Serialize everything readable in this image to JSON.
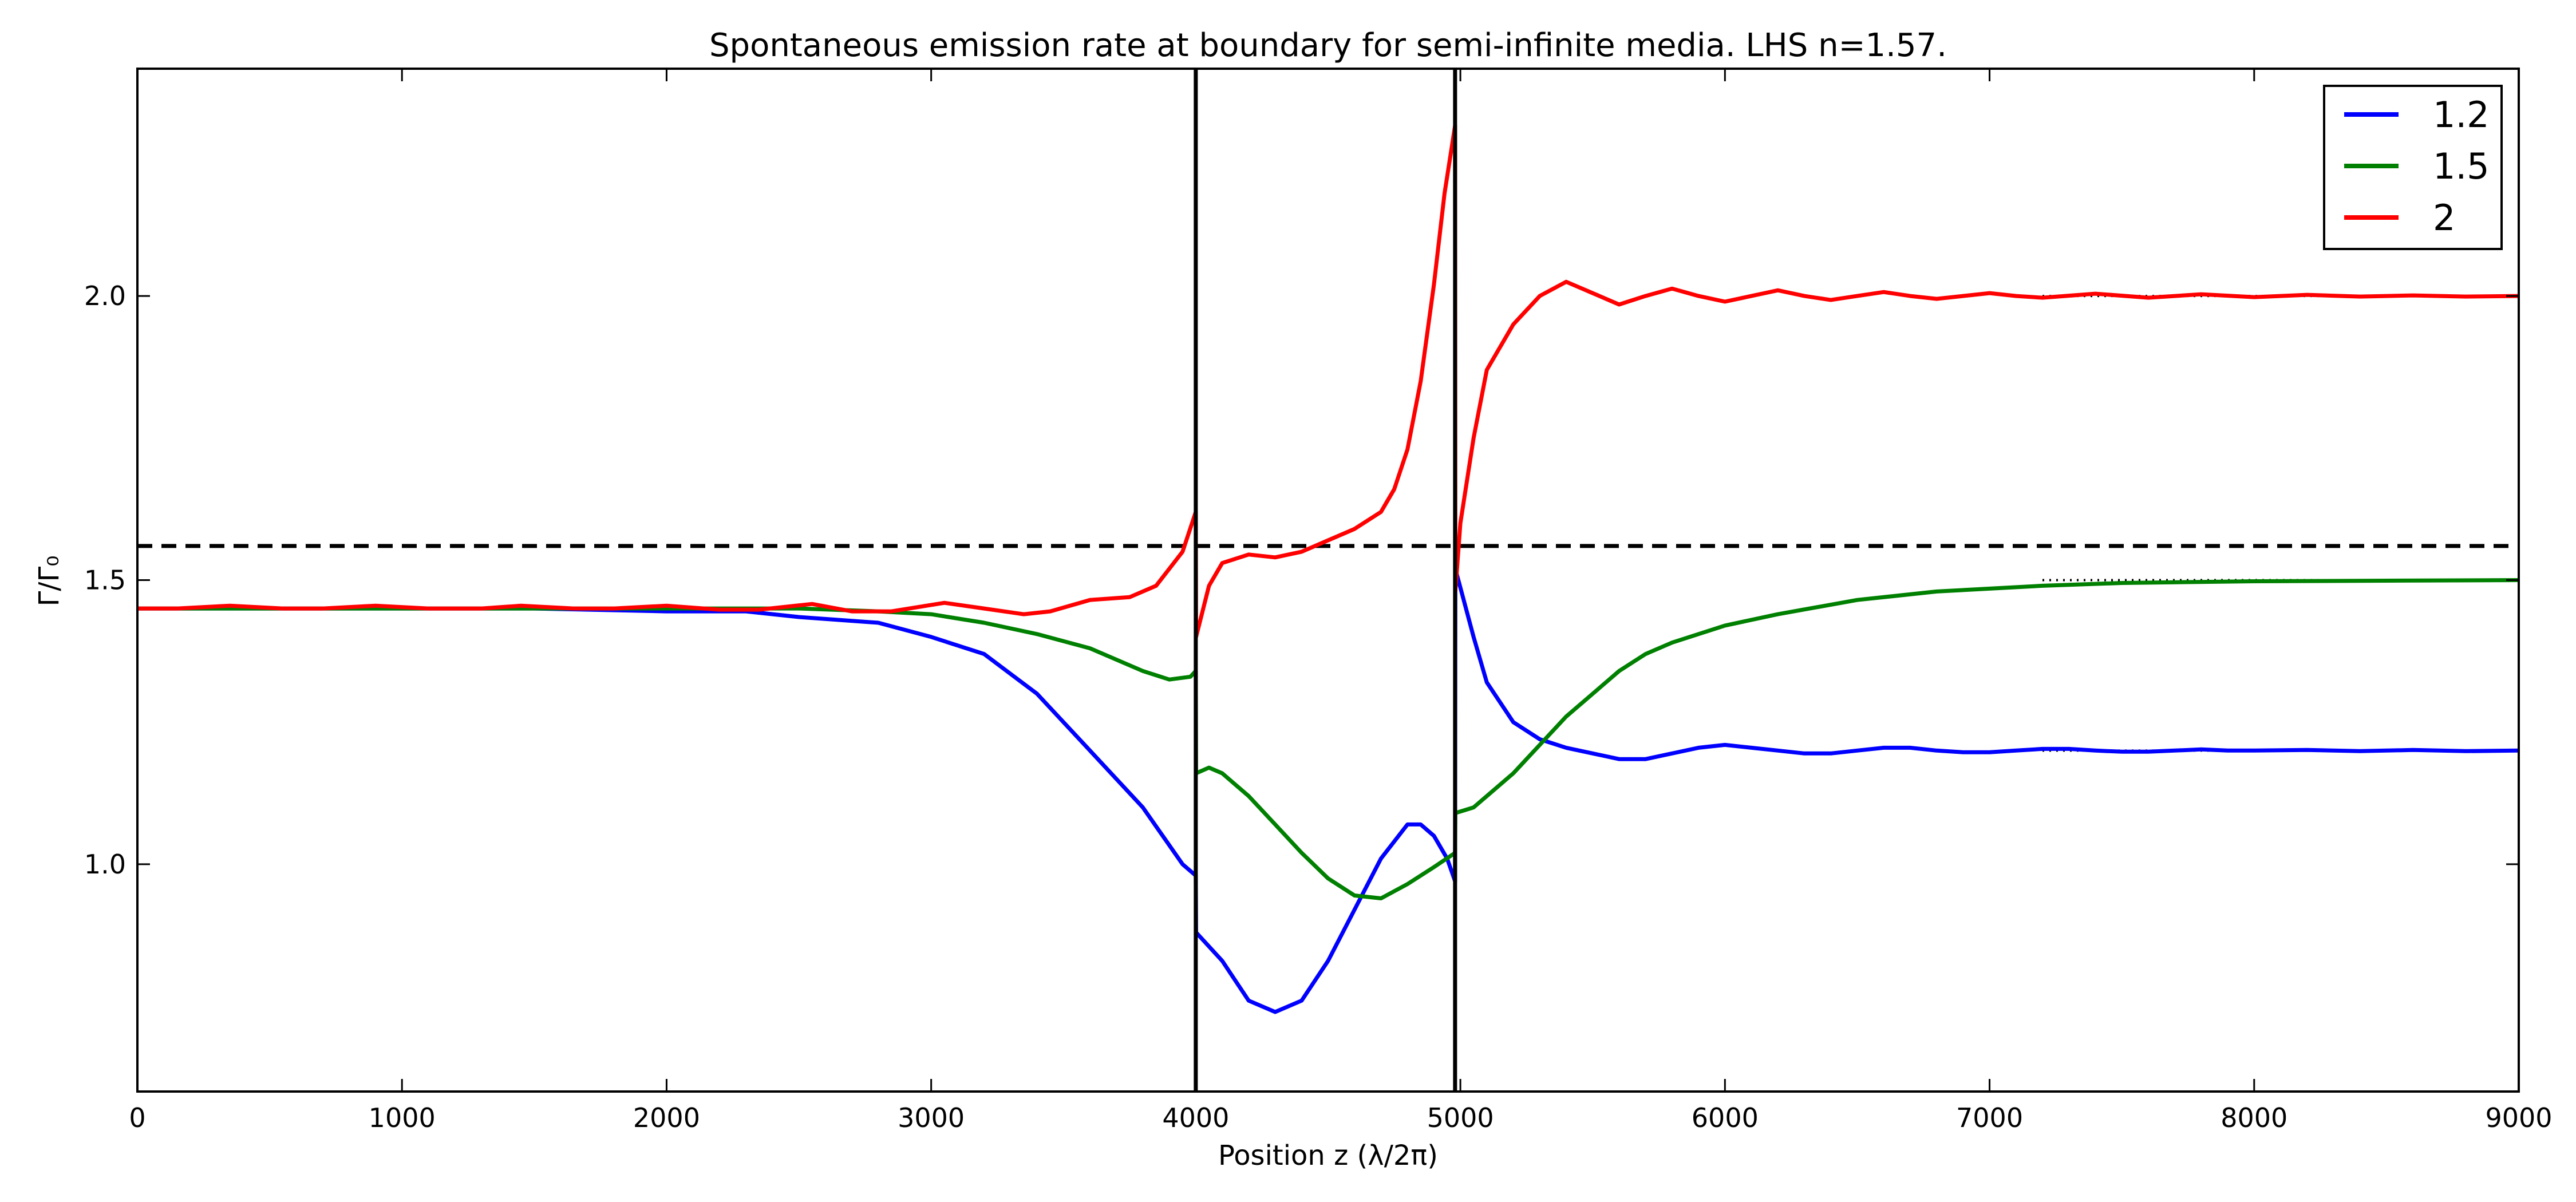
{
  "chart_data": {
    "type": "line",
    "title": "Spontaneous emission rate at boundary for semi-infinite media. LHS n=1.57.",
    "xlabel": "Position z (λ/2π)",
    "ylabel": "Γ/Γ₀",
    "xlim": [
      0,
      9000
    ],
    "ylim": [
      0.6,
      2.4
    ],
    "xticks": [
      0,
      1000,
      2000,
      3000,
      4000,
      5000,
      6000,
      7000,
      8000,
      9000
    ],
    "xtick_labels": [
      "0",
      "1000",
      "2000",
      "3000",
      "4000",
      "5000",
      "6000",
      "7000",
      "8000",
      "9000"
    ],
    "yticks": [
      1.0,
      1.5,
      2.0
    ],
    "ytick_labels": [
      "1.0",
      "1.5",
      "2.0"
    ],
    "grid": false,
    "legend_position": "top-right",
    "vertical_lines": [
      4000,
      4980
    ],
    "horizontal_dashed_line": 1.56,
    "series": [
      {
        "name": "1.2",
        "color": "#0000ff",
        "reference_level": 1.2,
        "points": [
          [
            0,
            1.45
          ],
          [
            500,
            1.45
          ],
          [
            1000,
            1.45
          ],
          [
            1500,
            1.45
          ],
          [
            2000,
            1.445
          ],
          [
            2300,
            1.445
          ],
          [
            2500,
            1.435
          ],
          [
            2800,
            1.425
          ],
          [
            3000,
            1.4
          ],
          [
            3200,
            1.37
          ],
          [
            3400,
            1.3
          ],
          [
            3600,
            1.2
          ],
          [
            3800,
            1.1
          ],
          [
            3950,
            1.0
          ],
          [
            4000,
            0.98
          ],
          [
            4001,
            0.88
          ],
          [
            4100,
            0.83
          ],
          [
            4200,
            0.76
          ],
          [
            4300,
            0.74
          ],
          [
            4400,
            0.76
          ],
          [
            4500,
            0.83
          ],
          [
            4600,
            0.92
          ],
          [
            4700,
            1.01
          ],
          [
            4800,
            1.07
          ],
          [
            4850,
            1.07
          ],
          [
            4900,
            1.05
          ],
          [
            4950,
            1.01
          ],
          [
            4980,
            0.97
          ],
          [
            4981,
            1.52
          ],
          [
            5050,
            1.4
          ],
          [
            5100,
            1.32
          ],
          [
            5200,
            1.25
          ],
          [
            5300,
            1.22
          ],
          [
            5400,
            1.205
          ],
          [
            5500,
            1.195
          ],
          [
            5600,
            1.185
          ],
          [
            5700,
            1.185
          ],
          [
            5800,
            1.195
          ],
          [
            5900,
            1.205
          ],
          [
            6000,
            1.21
          ],
          [
            6100,
            1.205
          ],
          [
            6200,
            1.2
          ],
          [
            6300,
            1.195
          ],
          [
            6400,
            1.195
          ],
          [
            6500,
            1.2
          ],
          [
            6600,
            1.205
          ],
          [
            6700,
            1.205
          ],
          [
            6800,
            1.2
          ],
          [
            6900,
            1.197
          ],
          [
            7000,
            1.197
          ],
          [
            7100,
            1.2
          ],
          [
            7200,
            1.203
          ],
          [
            7300,
            1.203
          ],
          [
            7400,
            1.2
          ],
          [
            7500,
            1.198
          ],
          [
            7600,
            1.198
          ],
          [
            7700,
            1.2
          ],
          [
            7800,
            1.202
          ],
          [
            7900,
            1.2
          ],
          [
            8000,
            1.2
          ],
          [
            8200,
            1.201
          ],
          [
            8400,
            1.199
          ],
          [
            8600,
            1.201
          ],
          [
            8800,
            1.199
          ],
          [
            9000,
            1.2
          ]
        ]
      },
      {
        "name": "1.5",
        "color": "#008000",
        "reference_level": 1.5,
        "points": [
          [
            0,
            1.45
          ],
          [
            500,
            1.45
          ],
          [
            1000,
            1.45
          ],
          [
            1500,
            1.45
          ],
          [
            2000,
            1.45
          ],
          [
            2500,
            1.45
          ],
          [
            2800,
            1.445
          ],
          [
            3000,
            1.44
          ],
          [
            3200,
            1.425
          ],
          [
            3400,
            1.405
          ],
          [
            3600,
            1.38
          ],
          [
            3800,
            1.34
          ],
          [
            3900,
            1.325
          ],
          [
            3980,
            1.33
          ],
          [
            4000,
            1.34
          ],
          [
            4001,
            1.16
          ],
          [
            4050,
            1.17
          ],
          [
            4100,
            1.16
          ],
          [
            4200,
            1.12
          ],
          [
            4300,
            1.07
          ],
          [
            4400,
            1.02
          ],
          [
            4500,
            0.975
          ],
          [
            4600,
            0.945
          ],
          [
            4700,
            0.94
          ],
          [
            4800,
            0.965
          ],
          [
            4900,
            0.995
          ],
          [
            4980,
            1.02
          ],
          [
            4981,
            1.09
          ],
          [
            5050,
            1.1
          ],
          [
            5100,
            1.12
          ],
          [
            5200,
            1.16
          ],
          [
            5300,
            1.21
          ],
          [
            5400,
            1.26
          ],
          [
            5500,
            1.3
          ],
          [
            5600,
            1.34
          ],
          [
            5700,
            1.37
          ],
          [
            5800,
            1.39
          ],
          [
            6000,
            1.42
          ],
          [
            6200,
            1.44
          ],
          [
            6500,
            1.465
          ],
          [
            6800,
            1.48
          ],
          [
            7000,
            1.485
          ],
          [
            7200,
            1.49
          ],
          [
            7500,
            1.495
          ],
          [
            8000,
            1.498
          ],
          [
            8500,
            1.499
          ],
          [
            9000,
            1.5
          ]
        ]
      },
      {
        "name": "2",
        "color": "#ff0000",
        "reference_level": 2.0,
        "points": [
          [
            0,
            1.45
          ],
          [
            150,
            1.45
          ],
          [
            350,
            1.455
          ],
          [
            550,
            1.45
          ],
          [
            700,
            1.45
          ],
          [
            900,
            1.455
          ],
          [
            1100,
            1.45
          ],
          [
            1300,
            1.45
          ],
          [
            1450,
            1.455
          ],
          [
            1650,
            1.45
          ],
          [
            1800,
            1.45
          ],
          [
            2000,
            1.455
          ],
          [
            2200,
            1.448
          ],
          [
            2350,
            1.448
          ],
          [
            2550,
            1.458
          ],
          [
            2700,
            1.445
          ],
          [
            2850,
            1.445
          ],
          [
            3050,
            1.46
          ],
          [
            3200,
            1.45
          ],
          [
            3350,
            1.44
          ],
          [
            3450,
            1.445
          ],
          [
            3600,
            1.465
          ],
          [
            3750,
            1.47
          ],
          [
            3850,
            1.49
          ],
          [
            3950,
            1.55
          ],
          [
            4000,
            1.62
          ],
          [
            4001,
            1.4
          ],
          [
            4050,
            1.49
          ],
          [
            4100,
            1.53
          ],
          [
            4200,
            1.545
          ],
          [
            4300,
            1.54
          ],
          [
            4400,
            1.55
          ],
          [
            4500,
            1.57
          ],
          [
            4600,
            1.59
          ],
          [
            4700,
            1.62
          ],
          [
            4750,
            1.66
          ],
          [
            4800,
            1.73
          ],
          [
            4850,
            1.85
          ],
          [
            4900,
            2.02
          ],
          [
            4940,
            2.18
          ],
          [
            4980,
            2.3
          ],
          [
            4981,
            1.48
          ],
          [
            5000,
            1.6
          ],
          [
            5050,
            1.75
          ],
          [
            5100,
            1.87
          ],
          [
            5200,
            1.95
          ],
          [
            5300,
            2.0
          ],
          [
            5400,
            2.025
          ],
          [
            5500,
            2.005
          ],
          [
            5600,
            1.985
          ],
          [
            5700,
            2.0
          ],
          [
            5800,
            2.013
          ],
          [
            5900,
            2.0
          ],
          [
            6000,
            1.99
          ],
          [
            6100,
            2.0
          ],
          [
            6200,
            2.01
          ],
          [
            6300,
            2.0
          ],
          [
            6400,
            1.993
          ],
          [
            6500,
            2.0
          ],
          [
            6600,
            2.007
          ],
          [
            6700,
            2.0
          ],
          [
            6800,
            1.995
          ],
          [
            6900,
            2.0
          ],
          [
            7000,
            2.005
          ],
          [
            7100,
            2.0
          ],
          [
            7200,
            1.997
          ],
          [
            7400,
            2.004
          ],
          [
            7600,
            1.997
          ],
          [
            7800,
            2.003
          ],
          [
            8000,
            1.998
          ],
          [
            8200,
            2.002
          ],
          [
            8400,
            1.999
          ],
          [
            8600,
            2.001
          ],
          [
            8800,
            1.999
          ],
          [
            9000,
            2.0
          ]
        ]
      }
    ]
  }
}
